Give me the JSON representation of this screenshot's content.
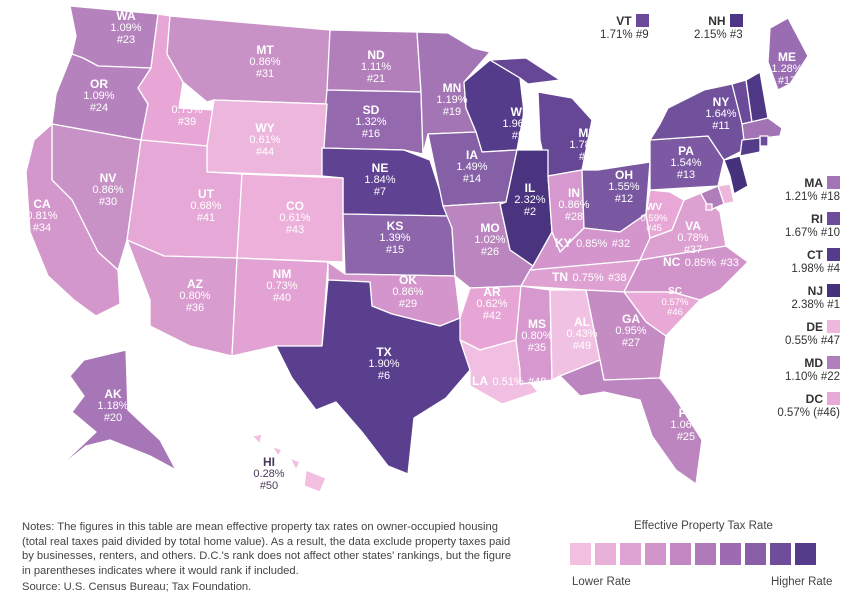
{
  "legend": {
    "title": "Effective Property Tax Rate",
    "low_label": "Lower Rate",
    "high_label": "Higher Rate",
    "colors": [
      "#f3bfe0",
      "#e9b0d9",
      "#dea3d3",
      "#d295cb",
      "#c287c2",
      "#b079ba",
      "#9d6bb1",
      "#895ea7",
      "#6f4d9a",
      "#553c8a"
    ]
  },
  "notes": {
    "text": "Notes: The figures in this table are mean effective property tax rates on owner-occupied housing (total real taxes paid divided by total home value). As a result, the data exclude property taxes paid by businesses, renters, and others. D.C.'s rank does not affect other states' rankings, but the figure in parentheses indicates where it would rank if included.",
    "source": "Source: U.S. Census Bureau; Tax Foundation."
  },
  "states": [
    {
      "abbr": "WA",
      "rate": "1.09%",
      "rank": "#23",
      "color": "#b582bd"
    },
    {
      "abbr": "OR",
      "rate": "1.09%",
      "rank": "#24",
      "color": "#b582bd"
    },
    {
      "abbr": "ID",
      "rate": "0.75%",
      "rank": "#39",
      "color": "#e8a6d6"
    },
    {
      "abbr": "MT",
      "rate": "0.86%",
      "rank": "#31",
      "color": "#c992c7"
    },
    {
      "abbr": "ND",
      "rate": "1.11%",
      "rank": "#21",
      "color": "#b27fbb"
    },
    {
      "abbr": "SD",
      "rate": "1.32%",
      "rank": "#16",
      "color": "#9569ae"
    },
    {
      "abbr": "MN",
      "rate": "1.19%",
      "rank": "#19",
      "color": "#a475b5"
    },
    {
      "abbr": "WI",
      "rate": "1.96%",
      "rank": "#5",
      "color": "#553c8a"
    },
    {
      "abbr": "MI",
      "rate": "1.78%",
      "rank": "#8",
      "color": "#654796"
    },
    {
      "abbr": "WY",
      "rate": "0.61%",
      "rank": "#44",
      "color": "#edb7dd"
    },
    {
      "abbr": "NE",
      "rate": "1.84%",
      "rank": "#7",
      "color": "#5f4392"
    },
    {
      "abbr": "IA",
      "rate": "1.49%",
      "rank": "#14",
      "color": "#8560a7"
    },
    {
      "abbr": "IL",
      "rate": "2.32%",
      "rank": "#2",
      "color": "#4a347f"
    },
    {
      "abbr": "NV",
      "rate": "0.86%",
      "rank": "#30",
      "color": "#c992c7"
    },
    {
      "abbr": "UT",
      "rate": "0.68%",
      "rank": "#41",
      "color": "#e6a8d6"
    },
    {
      "abbr": "CO",
      "rate": "0.61%",
      "rank": "#43",
      "color": "#ecb0da"
    },
    {
      "abbr": "KS",
      "rate": "1.39%",
      "rank": "#15",
      "color": "#8c65ab"
    },
    {
      "abbr": "MO",
      "rate": "1.02%",
      "rank": "#26",
      "color": "#bb86c0"
    },
    {
      "abbr": "IN",
      "rate": "0.86%",
      "rank": "#28",
      "color": "#d698ce"
    },
    {
      "abbr": "OH",
      "rate": "1.55%",
      "rank": "#12",
      "color": "#7a57a1"
    },
    {
      "abbr": "PA",
      "rate": "1.54%",
      "rank": "#13",
      "color": "#7d59a3"
    },
    {
      "abbr": "NY",
      "rate": "1.64%",
      "rank": "#11",
      "color": "#71509c"
    },
    {
      "abbr": "ME",
      "rate": "1.28%",
      "rank": "#17",
      "color": "#9a6cb1"
    },
    {
      "abbr": "CA",
      "rate": "0.81%",
      "rank": "#34",
      "color": "#d497cc"
    },
    {
      "abbr": "AZ",
      "rate": "0.80%",
      "rank": "#36",
      "color": "#d99ccf"
    },
    {
      "abbr": "NM",
      "rate": "0.73%",
      "rank": "#40",
      "color": "#e2a2d3"
    },
    {
      "abbr": "OK",
      "rate": "0.86%",
      "rank": "#29",
      "color": "#d395cc"
    },
    {
      "abbr": "TX",
      "rate": "1.90%",
      "rank": "#6",
      "color": "#5a3f8f"
    },
    {
      "abbr": "AR",
      "rate": "0.62%",
      "rank": "#42",
      "color": "#e7a5d5"
    },
    {
      "abbr": "LA",
      "rate": "0.51%",
      "rank": "#48",
      "color": "#f1bfe2"
    },
    {
      "abbr": "MS",
      "rate": "0.80%",
      "rank": "#35",
      "color": "#d698ce"
    },
    {
      "abbr": "AL",
      "rate": "0.43%",
      "rank": "#49",
      "color": "#f1c1e3"
    },
    {
      "abbr": "TN",
      "rate": "0.75%",
      "rank": "#38",
      "color": "#dea1d2"
    },
    {
      "abbr": "KY",
      "rate": "0.85%",
      "rank": "#32",
      "color": "#d395cc"
    },
    {
      "abbr": "WV",
      "rate": "0.59%",
      "rank": "#45",
      "color": "#e8a7d6"
    },
    {
      "abbr": "VA",
      "rate": "0.78%",
      "rank": "#37",
      "color": "#dca0d1"
    },
    {
      "abbr": "NC",
      "rate": "0.85%",
      "rank": "#33",
      "color": "#d194ca"
    },
    {
      "abbr": "SC",
      "rate": "0.57%",
      "rank": "#46",
      "color": "#e9a9d7"
    },
    {
      "abbr": "GA",
      "rate": "0.95%",
      "rank": "#27",
      "color": "#c58cc4"
    },
    {
      "abbr": "FL",
      "rate": "1.06%",
      "rank": "#25",
      "color": "#bc85c0"
    },
    {
      "abbr": "AK",
      "rate": "1.18%",
      "rank": "#20",
      "color": "#a676b6"
    },
    {
      "abbr": "HI",
      "rate": "0.28%",
      "rank": "#50",
      "color": "#f2bfe1"
    }
  ],
  "small_states": [
    {
      "abbr": "VT",
      "rate": "1.71%",
      "rank": "#9",
      "color": "#6a4a99"
    },
    {
      "abbr": "NH",
      "rate": "2.15%",
      "rank": "#3",
      "color": "#4e3784"
    },
    {
      "abbr": "MA",
      "rate": "1.21%",
      "rank": "#18",
      "color": "#a374b5"
    },
    {
      "abbr": "RI",
      "rate": "1.67%",
      "rank": "#10",
      "color": "#6d4d9b"
    },
    {
      "abbr": "CT",
      "rate": "1.98%",
      "rank": "#4",
      "color": "#553c8a"
    },
    {
      "abbr": "NJ",
      "rate": "2.38%",
      "rank": "#1",
      "color": "#46317c"
    },
    {
      "abbr": "DE",
      "rate": "0.55%",
      "rank": "#47",
      "color": "#eeb8dd"
    },
    {
      "abbr": "MD",
      "rate": "1.10%",
      "rank": "#22",
      "color": "#b07ebb"
    },
    {
      "abbr": "DC",
      "rate": "0.57%",
      "rank": "(#46)",
      "color": "#e9a9d7"
    }
  ]
}
